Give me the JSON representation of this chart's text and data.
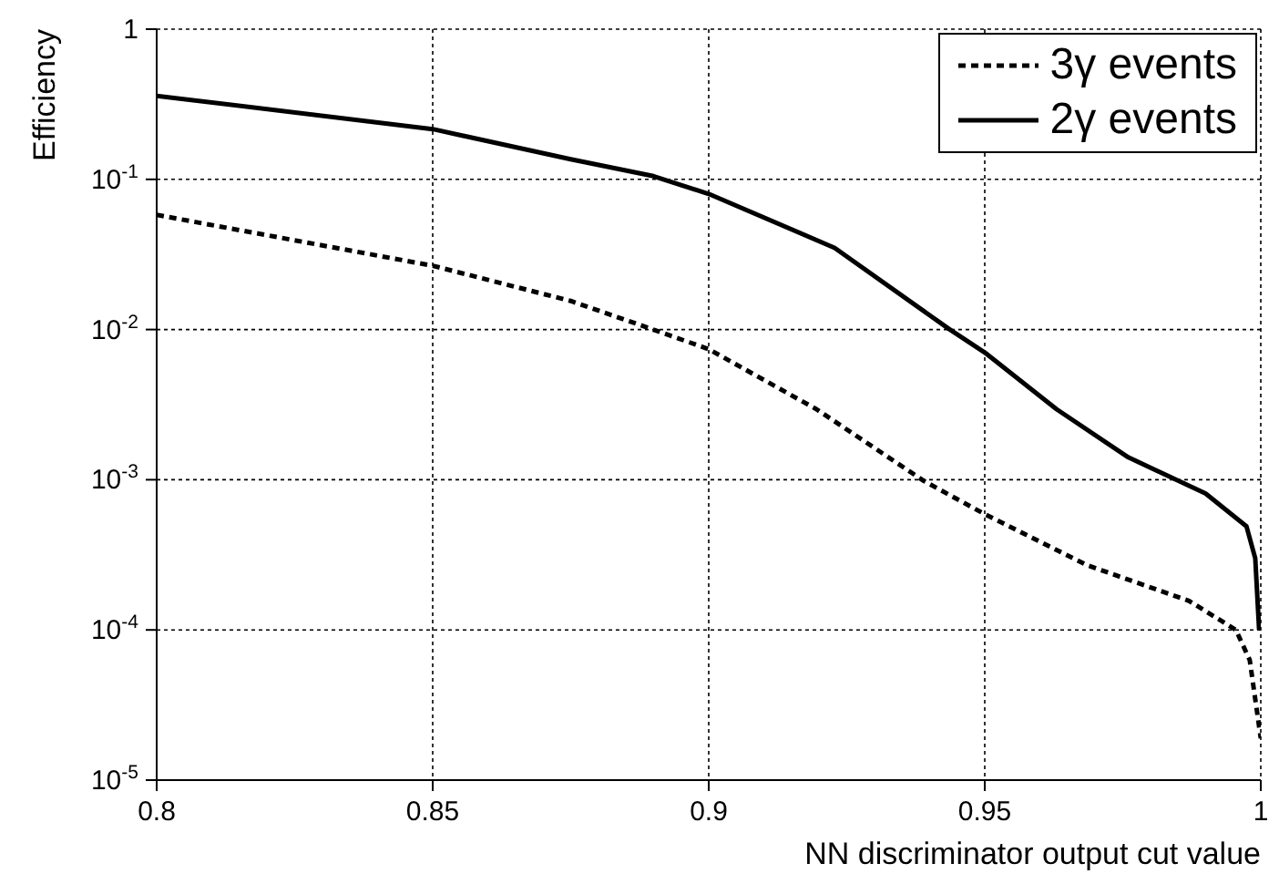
{
  "chart_data": {
    "type": "line",
    "xlabel": "NN discriminator output cut value",
    "ylabel": "Efficiency",
    "log": "y",
    "grid": true,
    "legend": "top right",
    "xlim": [
      0.8,
      1
    ],
    "xticks": [
      0.8,
      0.85,
      0.9,
      0.95,
      1
    ],
    "ylim": [
      1e-05,
      1
    ],
    "yticks": [
      {
        "value": 1e-05,
        "label": "10$^{-5}$"
      },
      {
        "value": 0.0001,
        "label": "10$^{-4}$"
      },
      {
        "value": 0.001,
        "label": "10$^{-3}$"
      },
      {
        "value": 0.01,
        "label": "10$^{-2}$"
      },
      {
        "value": 0.1,
        "label": "10$^{-1}$"
      },
      1
    ],
    "series": [
      {
        "name": "3γ events",
        "color": "#000000",
        "line_style": "dashed",
        "x": [
          0.8,
          0.85,
          0.875,
          0.8896,
          0.9,
          0.9195,
          0.939,
          0.95,
          0.9685,
          0.987,
          0.9955,
          0.998,
          1.0
        ],
        "values": [
          0.058,
          0.0266,
          0.0155,
          0.0101,
          0.0074,
          0.00295,
          0.00098,
          0.00059,
          0.00027,
          0.000156,
          0.0001,
          6.3e-05,
          1.9e-05
        ]
      },
      {
        "name": "2γ events",
        "color": "#000000",
        "line_style": "solid",
        "x": [
          0.8,
          0.85,
          0.875,
          0.89,
          0.9,
          0.9228,
          0.9435,
          0.95,
          0.963,
          0.976,
          0.99,
          0.9974,
          0.999,
          0.9997
        ],
        "values": [
          0.36,
          0.216,
          0.136,
          0.105,
          0.08,
          0.035,
          0.0101,
          0.00703,
          0.00295,
          0.00141,
          0.00081,
          0.00049,
          0.0003,
          0.0001
        ]
      }
    ]
  }
}
